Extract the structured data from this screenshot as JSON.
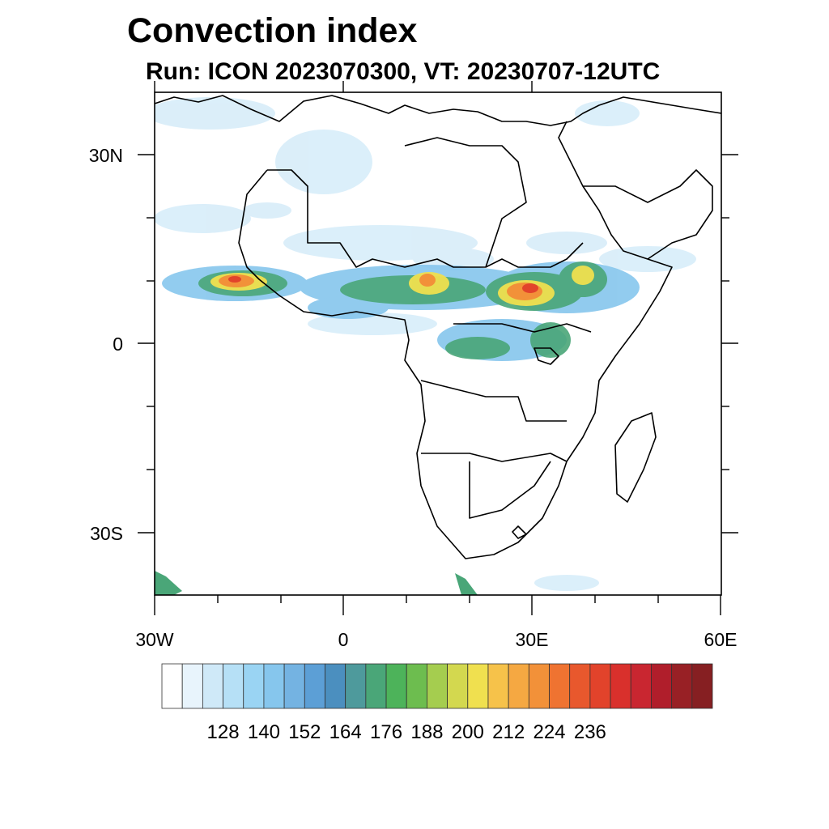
{
  "title": "Convection index",
  "subtitle": "Run: ICON 2023070300,  VT: 20230707-12UTC",
  "map": {
    "lon_range": [
      -30,
      60
    ],
    "lat_range": [
      -40,
      40
    ],
    "x_ticks": [
      {
        "lon": -30,
        "label": "30W"
      },
      {
        "lon": 0,
        "label": "0"
      },
      {
        "lon": 30,
        "label": "30E"
      },
      {
        "lon": 60,
        "label": "60E"
      }
    ],
    "y_ticks": [
      {
        "lat": 30,
        "label": "30N"
      },
      {
        "lat": 0,
        "label": "0"
      },
      {
        "lat": -30,
        "label": "30S"
      }
    ]
  },
  "colorbar": {
    "colors": [
      "#ffffff",
      "#e8f4fc",
      "#cfe9f8",
      "#b6e0f6",
      "#9ad4f3",
      "#86c6ed",
      "#74b3e2",
      "#5c9fd6",
      "#4b8fbf",
      "#4e9a9c",
      "#4aa678",
      "#4db35a",
      "#6dbd4f",
      "#a5cd4f",
      "#d3d84f",
      "#f0e04f",
      "#f6c24a",
      "#f5a842",
      "#f29139",
      "#ef7331",
      "#e8582d",
      "#e2432b",
      "#d9302c",
      "#c92630",
      "#b01e2b",
      "#982025",
      "#861f22"
    ],
    "labels": [
      "128",
      "140",
      "152",
      "164",
      "176",
      "188",
      "200",
      "212",
      "224",
      "236"
    ]
  }
}
